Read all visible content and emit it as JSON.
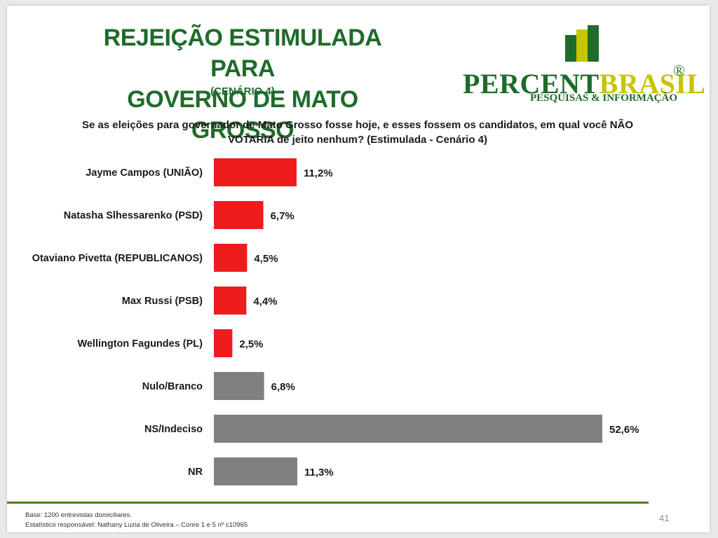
{
  "header": {
    "title_line1": "REJEIÇÃO ESTIMULADA PARA",
    "title_line2": "GOVERNO DE MATO GROSSO",
    "subtitle": "(CENÁRIO 4)"
  },
  "logo": {
    "word_part1": "PERCENT",
    "word_part2": "BRASIL",
    "registered": "®",
    "tagline": "PESQUISAS & INFORMAÇÃO",
    "colors": {
      "green": "#1f6b2a",
      "yellow": "#c8c400"
    }
  },
  "question": {
    "line1": "Se as eleições para governador de Mato Grosso fosse hoje, e esses fossem os candidatos, em qual você NÃO",
    "line2": "VOTARIA de jeito nenhum? (Estimulada - Cenário 4)"
  },
  "chart_data": {
    "type": "bar",
    "orientation": "horizontal",
    "categories": [
      "Jayme Campos (UNIÃO)",
      "Natasha Slhessarenko (PSD)",
      "Otaviano Pivetta (REPUBLICANOS)",
      "Max Russi (PSB)",
      "Wellington Fagundes (PL)",
      "Nulo/Branco",
      "NS/Indeciso",
      "NR"
    ],
    "values": [
      11.2,
      6.7,
      4.5,
      4.4,
      2.5,
      6.8,
      52.6,
      11.3
    ],
    "value_labels": [
      "11,2%",
      "6,7%",
      "4,5%",
      "4,4%",
      "2,5%",
      "6,8%",
      "52,6%",
      "11,3%"
    ],
    "bar_colors": [
      "#ee1c1c",
      "#ee1c1c",
      "#ee1c1c",
      "#ee1c1c",
      "#ee1c1c",
      "#808080",
      "#808080",
      "#808080"
    ],
    "xlim": [
      0,
      52.6
    ],
    "grid": false,
    "legend": "none"
  },
  "footer": {
    "base": "Base: 1200 entrevistas domiciliares.",
    "statistician": "Estatístico responsável: Nathany Luzia de Oliveira – Conre 1 e 5 nº c10965",
    "page_number": "41"
  }
}
